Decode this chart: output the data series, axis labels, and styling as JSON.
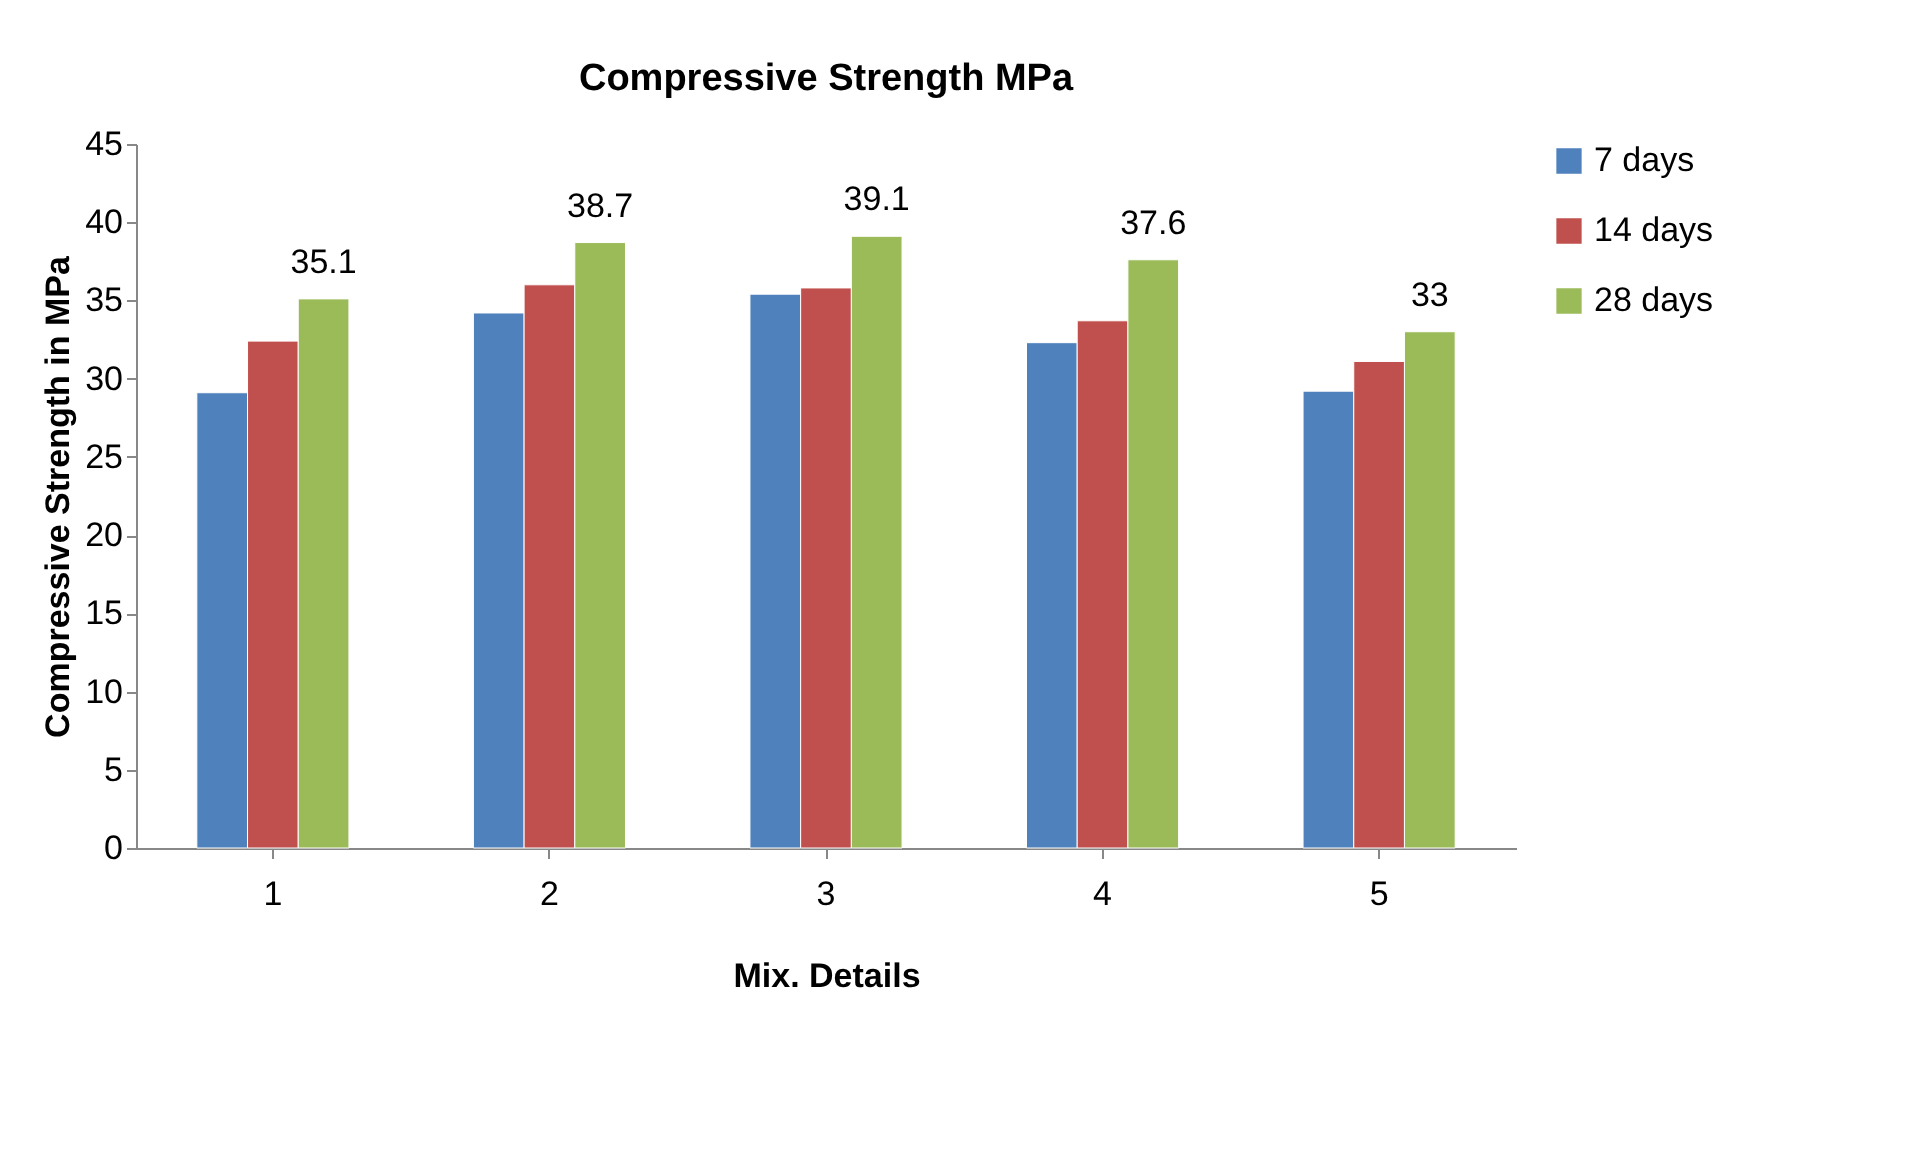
{
  "chart_data": {
    "type": "bar",
    "title": "Compressive Strength MPa",
    "xlabel": "Mix. Details",
    "ylabel": "Compressive Strength in MPa",
    "categories": [
      "1",
      "2",
      "3",
      "4",
      "5"
    ],
    "series": [
      {
        "name": "7 days",
        "color": "#4f81bd",
        "values": [
          29.1,
          34.2,
          35.4,
          32.3,
          29.2
        ]
      },
      {
        "name": "14 days",
        "color": "#c0504d",
        "values": [
          32.4,
          36.0,
          35.8,
          33.7,
          31.1
        ]
      },
      {
        "name": "28 days",
        "color": "#9bbb59",
        "values": [
          35.1,
          38.7,
          39.1,
          37.6,
          33
        ],
        "value_labels": [
          "35.1",
          "38.7",
          "39.1",
          "37.6",
          "33"
        ]
      }
    ],
    "ylim": [
      0,
      45
    ],
    "yticks": [
      0,
      5,
      10,
      15,
      20,
      25,
      30,
      35,
      40,
      45
    ],
    "grid": false,
    "legend": "right"
  }
}
